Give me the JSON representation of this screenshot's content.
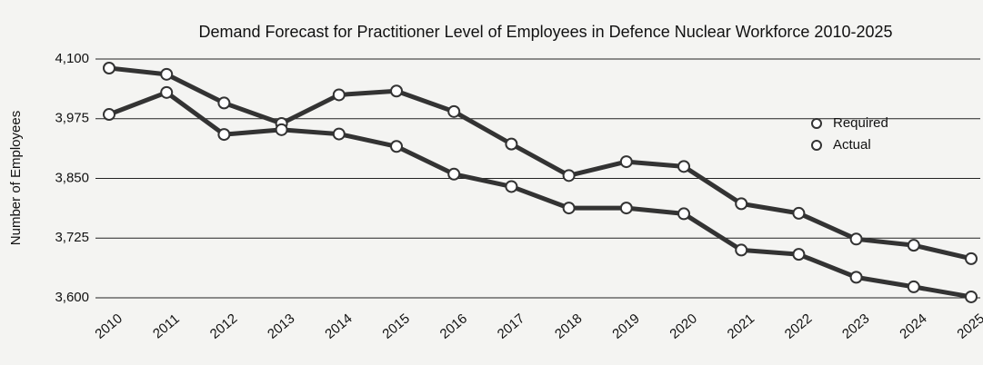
{
  "chart_data": {
    "type": "line",
    "title": "Demand Forecast for Practitioner Level of Employees in Defence Nuclear Workforce 2010-2025",
    "y_label": "Number of Employees",
    "categories": [
      "2010",
      "2011",
      "2012",
      "2013",
      "2014",
      "2015",
      "2016",
      "2017",
      "2018",
      "2019",
      "2020",
      "2021",
      "2022",
      "2023",
      "2024",
      "2025"
    ],
    "series": [
      {
        "name": "Required",
        "color": "#333333",
        "values": [
          4081,
          4068,
          4008,
          3965,
          4025,
          4033,
          3990,
          3922,
          3856,
          3885,
          3875,
          3797,
          3777,
          3723,
          3710,
          3682
        ]
      },
      {
        "name": "Actual",
        "color": "#333333",
        "values": [
          3984,
          4030,
          3942,
          3952,
          3943,
          3917,
          3859,
          3833,
          3788,
          3788,
          3776,
          3700,
          3691,
          3643,
          3623,
          3602
        ]
      }
    ],
    "ylim": [
      3600,
      4100
    ],
    "yticks": [
      {
        "value": 3600,
        "label": "3,600"
      },
      {
        "value": 3725,
        "label": "3,725"
      },
      {
        "value": 3850,
        "label": "3,850"
      },
      {
        "value": 3975,
        "label": "3,975"
      },
      {
        "value": 4100,
        "label": "4,100"
      }
    ],
    "grid": true,
    "legend": "right"
  }
}
